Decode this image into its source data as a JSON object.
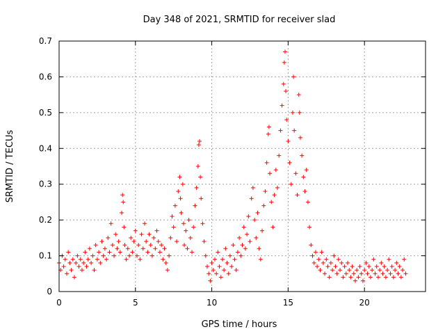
{
  "chart_data": {
    "type": "scatter",
    "title": "Day 348 of 2021, SRMTID for receiver slad",
    "xlabel": "GPS time / hours",
    "ylabel": "SRMTID / TECUs",
    "xlim": [
      0,
      24
    ],
    "ylim": [
      0,
      0.7
    ],
    "xticks": [
      0,
      5,
      10,
      15,
      20
    ],
    "yticks": [
      0,
      0.1,
      0.2,
      0.3,
      0.4,
      0.5,
      0.6,
      0.7
    ],
    "xtick_labels": [
      "0",
      "5",
      "10",
      "15",
      "20"
    ],
    "ytick_labels": [
      "0",
      "0.1",
      "0.2",
      "0.3",
      "0.4",
      "0.5",
      "0.6",
      "0.7"
    ],
    "grid": true,
    "marker": "+",
    "color": "#ff0000",
    "series": [
      {
        "name": "slad",
        "points": [
          [
            0.0,
            0.08
          ],
          [
            0.1,
            0.06
          ],
          [
            0.2,
            0.1
          ],
          [
            0.3,
            0.07
          ],
          [
            0.4,
            0.09
          ],
          [
            0.5,
            0.05
          ],
          [
            0.6,
            0.11
          ],
          [
            0.7,
            0.08
          ],
          [
            0.8,
            0.06
          ],
          [
            0.9,
            0.09
          ],
          [
            1.0,
            0.04
          ],
          [
            1.1,
            0.08
          ],
          [
            1.2,
            0.1
          ],
          [
            1.3,
            0.07
          ],
          [
            1.4,
            0.09
          ],
          [
            1.5,
            0.06
          ],
          [
            1.6,
            0.08
          ],
          [
            1.7,
            0.11
          ],
          [
            1.8,
            0.07
          ],
          [
            1.9,
            0.09
          ],
          [
            2.0,
            0.12
          ],
          [
            2.1,
            0.08
          ],
          [
            2.2,
            0.1
          ],
          [
            2.3,
            0.06
          ],
          [
            2.4,
            0.13
          ],
          [
            2.5,
            0.09
          ],
          [
            2.6,
            0.11
          ],
          [
            2.7,
            0.08
          ],
          [
            2.8,
            0.14
          ],
          [
            2.9,
            0.1
          ],
          [
            3.0,
            0.12
          ],
          [
            3.1,
            0.09
          ],
          [
            3.2,
            0.15
          ],
          [
            3.3,
            0.11
          ],
          [
            3.4,
            0.19
          ],
          [
            3.5,
            0.13
          ],
          [
            3.6,
            0.1
          ],
          [
            3.7,
            0.16
          ],
          [
            3.8,
            0.12
          ],
          [
            3.9,
            0.14
          ],
          [
            4.0,
            0.11
          ],
          [
            4.1,
            0.22
          ],
          [
            4.15,
            0.27
          ],
          [
            4.2,
            0.25
          ],
          [
            4.25,
            0.18
          ],
          [
            4.3,
            0.13
          ],
          [
            4.4,
            0.09
          ],
          [
            4.5,
            0.12
          ],
          [
            4.6,
            0.1
          ],
          [
            4.7,
            0.15
          ],
          [
            4.8,
            0.11
          ],
          [
            4.9,
            0.14
          ],
          [
            5.0,
            0.17
          ],
          [
            5.1,
            0.1
          ],
          [
            5.2,
            0.13
          ],
          [
            5.3,
            0.09
          ],
          [
            5.4,
            0.16
          ],
          [
            5.5,
            0.12
          ],
          [
            5.6,
            0.19
          ],
          [
            5.7,
            0.14
          ],
          [
            5.8,
            0.11
          ],
          [
            5.9,
            0.16
          ],
          [
            6.0,
            0.13
          ],
          [
            6.1,
            0.1
          ],
          [
            6.2,
            0.15
          ],
          [
            6.3,
            0.12
          ],
          [
            6.4,
            0.17
          ],
          [
            6.5,
            0.14
          ],
          [
            6.6,
            0.11
          ],
          [
            6.7,
            0.13
          ],
          [
            6.8,
            0.09
          ],
          [
            6.9,
            0.12
          ],
          [
            7.0,
            0.08
          ],
          [
            7.1,
            0.06
          ],
          [
            7.2,
            0.1
          ],
          [
            7.3,
            0.15
          ],
          [
            7.4,
            0.21
          ],
          [
            7.5,
            0.18
          ],
          [
            7.6,
            0.24
          ],
          [
            7.7,
            0.14
          ],
          [
            7.8,
            0.28
          ],
          [
            7.9,
            0.32
          ],
          [
            7.95,
            0.26
          ],
          [
            8.0,
            0.22
          ],
          [
            8.1,
            0.3
          ],
          [
            8.15,
            0.19
          ],
          [
            8.2,
            0.13
          ],
          [
            8.3,
            0.17
          ],
          [
            8.4,
            0.12
          ],
          [
            8.5,
            0.2
          ],
          [
            8.6,
            0.15
          ],
          [
            8.7,
            0.11
          ],
          [
            8.8,
            0.18
          ],
          [
            8.9,
            0.24
          ],
          [
            9.0,
            0.29
          ],
          [
            9.1,
            0.35
          ],
          [
            9.15,
            0.41
          ],
          [
            9.2,
            0.42
          ],
          [
            9.25,
            0.32
          ],
          [
            9.3,
            0.26
          ],
          [
            9.4,
            0.19
          ],
          [
            9.5,
            0.14
          ],
          [
            9.6,
            0.1
          ],
          [
            9.7,
            0.07
          ],
          [
            9.8,
            0.05
          ],
          [
            9.9,
            0.03
          ],
          [
            10.0,
            0.08
          ],
          [
            10.1,
            0.06
          ],
          [
            10.2,
            0.09
          ],
          [
            10.3,
            0.05
          ],
          [
            10.4,
            0.11
          ],
          [
            10.5,
            0.07
          ],
          [
            10.6,
            0.04
          ],
          [
            10.7,
            0.09
          ],
          [
            10.8,
            0.06
          ],
          [
            10.9,
            0.12
          ],
          [
            11.0,
            0.08
          ],
          [
            11.1,
            0.05
          ],
          [
            11.2,
            0.1
          ],
          [
            11.3,
            0.07
          ],
          [
            11.4,
            0.13
          ],
          [
            11.5,
            0.09
          ],
          [
            11.6,
            0.06
          ],
          [
            11.7,
            0.11
          ],
          [
            11.8,
            0.15
          ],
          [
            11.9,
            0.1
          ],
          [
            12.0,
            0.13
          ],
          [
            12.1,
            0.18
          ],
          [
            12.2,
            0.12
          ],
          [
            12.3,
            0.16
          ],
          [
            12.4,
            0.21
          ],
          [
            12.5,
            0.14
          ],
          [
            12.6,
            0.26
          ],
          [
            12.7,
            0.29
          ],
          [
            12.8,
            0.2
          ],
          [
            12.9,
            0.15
          ],
          [
            13.0,
            0.22
          ],
          [
            13.1,
            0.12
          ],
          [
            13.2,
            0.09
          ],
          [
            13.3,
            0.17
          ],
          [
            13.4,
            0.24
          ],
          [
            13.5,
            0.28
          ],
          [
            13.6,
            0.36
          ],
          [
            13.7,
            0.44
          ],
          [
            13.75,
            0.46
          ],
          [
            13.8,
            0.33
          ],
          [
            13.9,
            0.25
          ],
          [
            14.0,
            0.18
          ],
          [
            14.1,
            0.27
          ],
          [
            14.2,
            0.34
          ],
          [
            14.3,
            0.29
          ],
          [
            14.4,
            0.38
          ],
          [
            14.5,
            0.45
          ],
          [
            14.6,
            0.52
          ],
          [
            14.7,
            0.58
          ],
          [
            14.75,
            0.64
          ],
          [
            14.8,
            0.67
          ],
          [
            14.85,
            0.56
          ],
          [
            14.9,
            0.48
          ],
          [
            15.0,
            0.42
          ],
          [
            15.1,
            0.36
          ],
          [
            15.2,
            0.3
          ],
          [
            15.3,
            0.5
          ],
          [
            15.35,
            0.6
          ],
          [
            15.4,
            0.45
          ],
          [
            15.5,
            0.33
          ],
          [
            15.6,
            0.27
          ],
          [
            15.7,
            0.55
          ],
          [
            15.75,
            0.5
          ],
          [
            15.8,
            0.43
          ],
          [
            15.9,
            0.38
          ],
          [
            16.0,
            0.32
          ],
          [
            16.1,
            0.28
          ],
          [
            16.2,
            0.34
          ],
          [
            16.3,
            0.25
          ],
          [
            16.4,
            0.18
          ],
          [
            16.5,
            0.13
          ],
          [
            16.6,
            0.1
          ],
          [
            16.7,
            0.08
          ],
          [
            16.8,
            0.11
          ],
          [
            16.9,
            0.07
          ],
          [
            17.0,
            0.09
          ],
          [
            17.1,
            0.06
          ],
          [
            17.2,
            0.11
          ],
          [
            17.3,
            0.08
          ],
          [
            17.4,
            0.05
          ],
          [
            17.5,
            0.09
          ],
          [
            17.6,
            0.07
          ],
          [
            17.7,
            0.04
          ],
          [
            17.8,
            0.08
          ],
          [
            17.9,
            0.06
          ],
          [
            18.0,
            0.1
          ],
          [
            18.1,
            0.07
          ],
          [
            18.2,
            0.05
          ],
          [
            18.3,
            0.09
          ],
          [
            18.4,
            0.06
          ],
          [
            18.5,
            0.08
          ],
          [
            18.6,
            0.04
          ],
          [
            18.7,
            0.07
          ],
          [
            18.8,
            0.05
          ],
          [
            18.9,
            0.08
          ],
          [
            19.0,
            0.06
          ],
          [
            19.1,
            0.04
          ],
          [
            19.2,
            0.07
          ],
          [
            19.3,
            0.05
          ],
          [
            19.4,
            0.03
          ],
          [
            19.5,
            0.06
          ],
          [
            19.6,
            0.04
          ],
          [
            19.7,
            0.07
          ],
          [
            19.8,
            0.05
          ],
          [
            19.9,
            0.03
          ],
          [
            20.0,
            0.06
          ],
          [
            20.1,
            0.08
          ],
          [
            20.2,
            0.05
          ],
          [
            20.3,
            0.07
          ],
          [
            20.4,
            0.04
          ],
          [
            20.5,
            0.06
          ],
          [
            20.6,
            0.09
          ],
          [
            20.7,
            0.05
          ],
          [
            20.8,
            0.07
          ],
          [
            20.9,
            0.04
          ],
          [
            21.0,
            0.06
          ],
          [
            21.1,
            0.08
          ],
          [
            21.2,
            0.05
          ],
          [
            21.3,
            0.07
          ],
          [
            21.4,
            0.04
          ],
          [
            21.5,
            0.06
          ],
          [
            21.6,
            0.09
          ],
          [
            21.7,
            0.05
          ],
          [
            21.8,
            0.07
          ],
          [
            21.9,
            0.04
          ],
          [
            22.0,
            0.06
          ],
          [
            22.1,
            0.08
          ],
          [
            22.2,
            0.05
          ],
          [
            22.3,
            0.07
          ],
          [
            22.4,
            0.04
          ],
          [
            22.5,
            0.06
          ],
          [
            22.6,
            0.09
          ],
          [
            22.7,
            0.05
          ]
        ]
      }
    ]
  }
}
